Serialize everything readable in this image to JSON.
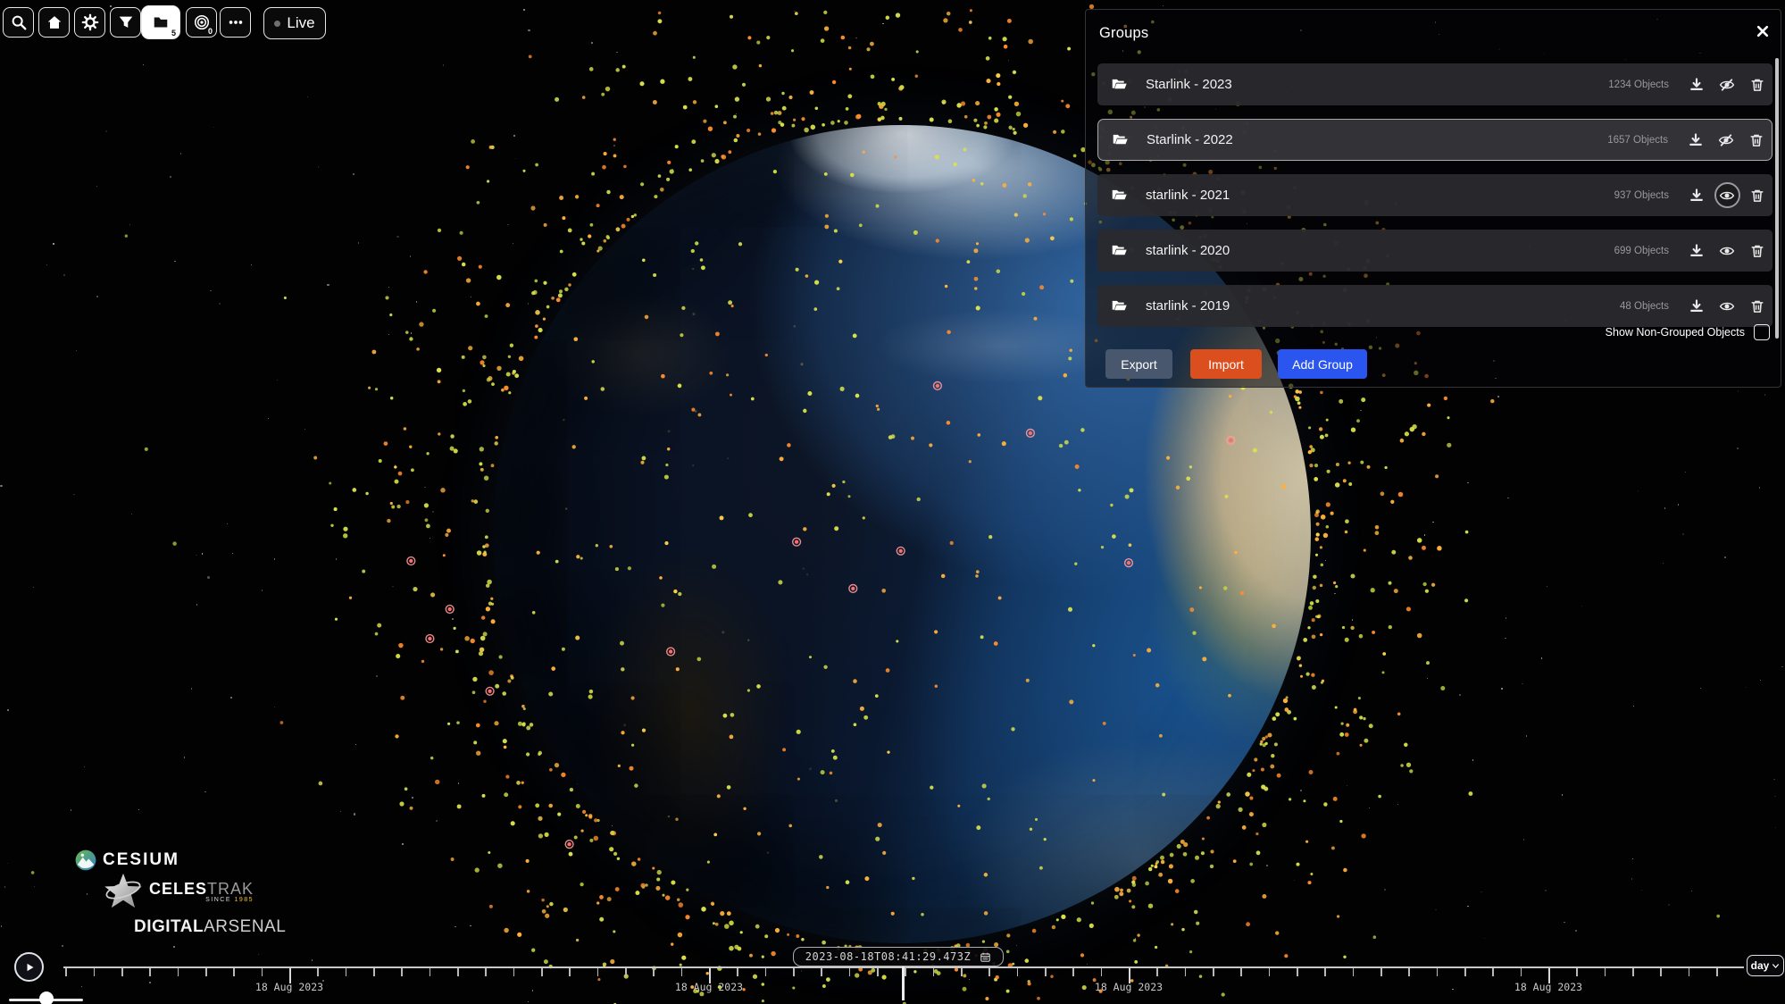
{
  "toolbar": {
    "buttons": [
      {
        "name": "search",
        "icon": "search"
      },
      {
        "name": "home",
        "icon": "home"
      },
      {
        "name": "settings",
        "icon": "gear"
      },
      {
        "name": "filter",
        "icon": "funnel"
      },
      {
        "name": "groups",
        "icon": "folder",
        "badge": "5",
        "active": true
      },
      {
        "name": "watchlist",
        "icon": "orbit",
        "badge": "0"
      },
      {
        "name": "more",
        "icon": "ellipsis"
      }
    ],
    "live_label": "Live"
  },
  "groups_panel": {
    "title": "Groups",
    "rows": [
      {
        "name": "Starlink - 2023",
        "count": "1234 Objects",
        "visible": false,
        "selected": false,
        "eye_focused": false
      },
      {
        "name": "Starlink - 2022",
        "count": "1657 Objects",
        "visible": false,
        "selected": true,
        "eye_focused": false
      },
      {
        "name": "starlink - 2021",
        "count": "937 Objects",
        "visible": true,
        "selected": false,
        "eye_focused": true
      },
      {
        "name": "starlink - 2020",
        "count": "699 Objects",
        "visible": true,
        "selected": false,
        "eye_focused": false
      },
      {
        "name": "starlink - 2019",
        "count": "48 Objects",
        "visible": true,
        "selected": false,
        "eye_focused": false
      }
    ],
    "show_non_grouped_label": "Show Non-Grouped Objects",
    "buttons": {
      "export": "Export",
      "import": "Import",
      "add_group": "Add Group"
    },
    "colors": {
      "export_bg": "#48576d",
      "import_bg": "#db4e1e",
      "add_group_bg": "#2a55ef"
    }
  },
  "timeline": {
    "clock_text": "2023-08-18T08:41:29.473Z",
    "date_labels": [
      "18 Aug 2023",
      "18 Aug 2023",
      "18 Aug 2023",
      "18 Aug 2023"
    ],
    "zoom_select_value": "day"
  },
  "logos": {
    "cesium": "CESIUM",
    "celestrak_bold": "CELES",
    "celestrak_light": "TRAK",
    "celestrak_since": "SINCE",
    "celestrak_year": "1985",
    "digital_bold": "DIGITAL",
    "digital_light": "ARSENAL"
  },
  "scene": {
    "satellite_colors": [
      "#d9e24b",
      "#ffb13c",
      "#ff8d2c",
      "#cbd83e",
      "#ffd34d"
    ],
    "marker_color": "#ff6b6b",
    "marker_ring_color": "#ff9c9c",
    "ring_count": 980,
    "globe_count": 250,
    "star_count": 300,
    "marker_count": 13
  }
}
